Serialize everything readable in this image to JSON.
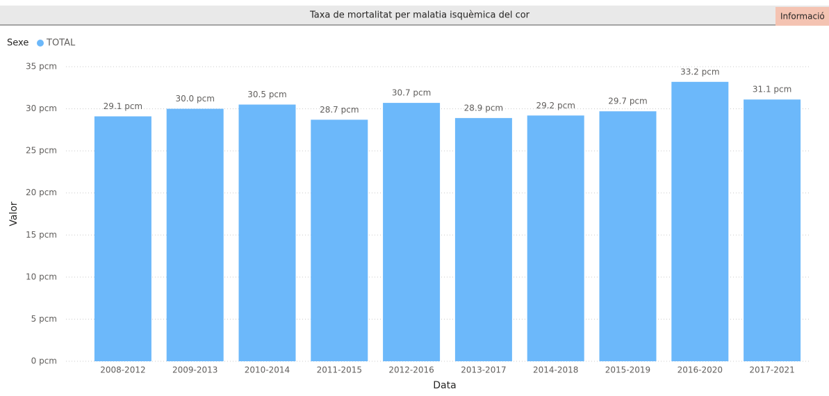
{
  "header": {
    "title": "Taxa de mortalitat per malatia isquèmica del cor",
    "button": "Informació"
  },
  "chart_data": {
    "type": "bar",
    "legend_title": "Sexe",
    "x_label": "Data",
    "y_label": "Valor",
    "categories": [
      "2008-2012",
      "2009-2013",
      "2010-2014",
      "2011-2015",
      "2012-2016",
      "2013-2017",
      "2014-2018",
      "2015-2019",
      "2016-2020",
      "2017-2021"
    ],
    "series": [
      {
        "name": "TOTAL",
        "color": "#6cb8fa",
        "values": [
          29.1,
          30.0,
          30.5,
          28.7,
          30.7,
          28.9,
          29.2,
          29.7,
          33.2,
          31.1
        ],
        "value_labels": [
          "29.1 pcm",
          "30.0 pcm",
          "30.5 pcm",
          "28.7 pcm",
          "30.7 pcm",
          "28.9 pcm",
          "29.2 pcm",
          "29.7 pcm",
          "33.2 pcm",
          "31.1 pcm"
        ]
      }
    ],
    "ylim": [
      0,
      35
    ],
    "yticks": [
      {
        "value": 0,
        "label": "0 pcm"
      },
      {
        "value": 5,
        "label": "5 pcm"
      },
      {
        "value": 10,
        "label": "10 pcm"
      },
      {
        "value": 15,
        "label": "15 pcm"
      },
      {
        "value": 20,
        "label": "20 pcm"
      },
      {
        "value": 25,
        "label": "25 pcm"
      },
      {
        "value": 30,
        "label": "30 pcm"
      },
      {
        "value": 35,
        "label": "35 pcm"
      }
    ],
    "grid": true
  }
}
